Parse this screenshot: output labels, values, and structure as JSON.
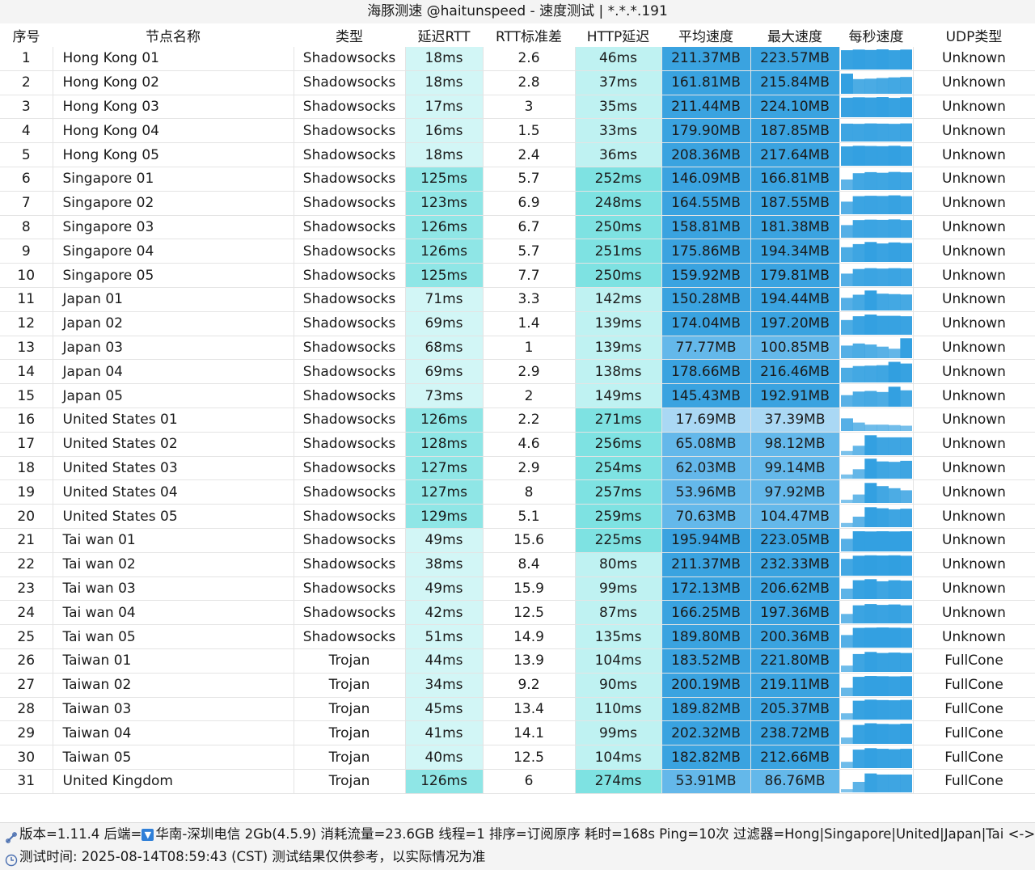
{
  "window": {
    "title": "海豚测速 @haitunspeed - 速度测试 | *.*.*.191"
  },
  "headers": [
    "序号",
    "节点名称",
    "类型",
    "延迟RTT",
    "RTT标准差",
    "HTTP延迟",
    "平均速度",
    "最大速度",
    "每秒速度",
    "UDP类型"
  ],
  "rows": [
    {
      "idx": "1",
      "name": "Hong Kong 01",
      "type": "Shadowsocks",
      "rtt": "18ms",
      "std": "2.6",
      "http": "46ms",
      "avg": "211.37MB",
      "max": "223.57MB",
      "udp": "Unknown",
      "spark": [
        0.92,
        0.95,
        0.93,
        0.96,
        0.92,
        0.95
      ]
    },
    {
      "idx": "2",
      "name": "Hong Kong 02",
      "type": "Shadowsocks",
      "rtt": "18ms",
      "std": "2.8",
      "http": "37ms",
      "avg": "161.81MB",
      "max": "215.84MB",
      "udp": "Unknown",
      "spark": [
        0.96,
        0.7,
        0.72,
        0.75,
        0.78,
        0.8
      ]
    },
    {
      "idx": "3",
      "name": "Hong Kong 03",
      "type": "Shadowsocks",
      "rtt": "17ms",
      "std": "3",
      "http": "35ms",
      "avg": "211.44MB",
      "max": "224.10MB",
      "udp": "Unknown",
      "spark": [
        0.93,
        0.95,
        0.94,
        0.96,
        0.92,
        0.95
      ]
    },
    {
      "idx": "4",
      "name": "Hong Kong 04",
      "type": "Shadowsocks",
      "rtt": "16ms",
      "std": "1.5",
      "http": "33ms",
      "avg": "179.90MB",
      "max": "187.85MB",
      "udp": "Unknown",
      "spark": [
        0.85,
        0.84,
        0.86,
        0.85,
        0.84,
        0.86
      ]
    },
    {
      "idx": "5",
      "name": "Hong Kong 05",
      "type": "Shadowsocks",
      "rtt": "18ms",
      "std": "2.4",
      "http": "36ms",
      "avg": "208.36MB",
      "max": "217.64MB",
      "udp": "Unknown",
      "spark": [
        0.92,
        0.95,
        0.94,
        0.93,
        0.95,
        0.92
      ]
    },
    {
      "idx": "6",
      "name": "Singapore 01",
      "type": "Shadowsocks",
      "rtt": "125ms",
      "std": "5.7",
      "http": "252ms",
      "avg": "146.09MB",
      "max": "166.81MB",
      "udp": "Unknown",
      "spark": [
        0.5,
        0.8,
        0.85,
        0.82,
        0.86,
        0.84
      ]
    },
    {
      "idx": "7",
      "name": "Singapore 02",
      "type": "Shadowsocks",
      "rtt": "123ms",
      "std": "6.9",
      "http": "248ms",
      "avg": "164.55MB",
      "max": "187.55MB",
      "udp": "Unknown",
      "spark": [
        0.6,
        0.86,
        0.88,
        0.87,
        0.9,
        0.86
      ]
    },
    {
      "idx": "8",
      "name": "Singapore 03",
      "type": "Shadowsocks",
      "rtt": "126ms",
      "std": "6.7",
      "http": "250ms",
      "avg": "158.81MB",
      "max": "181.38MB",
      "udp": "Unknown",
      "spark": [
        0.6,
        0.84,
        0.86,
        0.85,
        0.87,
        0.84
      ]
    },
    {
      "idx": "9",
      "name": "Singapore 04",
      "type": "Shadowsocks",
      "rtt": "126ms",
      "std": "5.7",
      "http": "251ms",
      "avg": "175.86MB",
      "max": "194.34MB",
      "udp": "Unknown",
      "spark": [
        0.7,
        0.85,
        0.95,
        0.88,
        0.93,
        0.9
      ]
    },
    {
      "idx": "10",
      "name": "Singapore 05",
      "type": "Shadowsocks",
      "rtt": "125ms",
      "std": "7.7",
      "http": "250ms",
      "avg": "159.92MB",
      "max": "179.81MB",
      "udp": "Unknown",
      "spark": [
        0.6,
        0.82,
        0.86,
        0.84,
        0.86,
        0.85
      ]
    },
    {
      "idx": "11",
      "name": "Japan 01",
      "type": "Shadowsocks",
      "rtt": "71ms",
      "std": "3.3",
      "http": "142ms",
      "avg": "150.28MB",
      "max": "194.44MB",
      "udp": "Unknown",
      "spark": [
        0.6,
        0.75,
        0.95,
        0.8,
        0.78,
        0.76
      ]
    },
    {
      "idx": "12",
      "name": "Japan 02",
      "type": "Shadowsocks",
      "rtt": "69ms",
      "std": "1.4",
      "http": "139ms",
      "avg": "174.04MB",
      "max": "197.20MB",
      "udp": "Unknown",
      "spark": [
        0.7,
        0.88,
        0.96,
        0.9,
        0.9,
        0.88
      ]
    },
    {
      "idx": "13",
      "name": "Japan 03",
      "type": "Shadowsocks",
      "rtt": "68ms",
      "std": "1",
      "http": "139ms",
      "avg": "77.77MB",
      "max": "100.85MB",
      "udp": "Unknown",
      "spark": [
        0.6,
        0.7,
        0.65,
        0.55,
        0.45,
        0.95
      ]
    },
    {
      "idx": "14",
      "name": "Japan 04",
      "type": "Shadowsocks",
      "rtt": "69ms",
      "std": "2.9",
      "http": "138ms",
      "avg": "178.66MB",
      "max": "216.46MB",
      "udp": "Unknown",
      "spark": [
        0.7,
        0.78,
        0.8,
        0.82,
        0.98,
        0.9
      ]
    },
    {
      "idx": "15",
      "name": "Japan 05",
      "type": "Shadowsocks",
      "rtt": "73ms",
      "std": "2",
      "http": "149ms",
      "avg": "145.43MB",
      "max": "192.91MB",
      "udp": "Unknown",
      "spark": [
        0.55,
        0.72,
        0.75,
        0.7,
        0.95,
        0.78
      ]
    },
    {
      "idx": "16",
      "name": "United States 01",
      "type": "Shadowsocks",
      "rtt": "126ms",
      "std": "2.2",
      "http": "271ms",
      "avg": "17.69MB",
      "max": "37.39MB",
      "udp": "Unknown",
      "spark": [
        0.6,
        0.4,
        0.3,
        0.3,
        0.28,
        0.25
      ]
    },
    {
      "idx": "17",
      "name": "United States 02",
      "type": "Shadowsocks",
      "rtt": "128ms",
      "std": "4.6",
      "http": "256ms",
      "avg": "65.08MB",
      "max": "98.12MB",
      "udp": "Unknown",
      "spark": [
        0.2,
        0.45,
        0.95,
        0.85,
        0.85,
        0.85
      ]
    },
    {
      "idx": "18",
      "name": "United States 03",
      "type": "Shadowsocks",
      "rtt": "127ms",
      "std": "2.9",
      "http": "254ms",
      "avg": "62.03MB",
      "max": "99.14MB",
      "udp": "Unknown",
      "spark": [
        0.2,
        0.45,
        0.95,
        0.82,
        0.8,
        0.85
      ]
    },
    {
      "idx": "19",
      "name": "United States 04",
      "type": "Shadowsocks",
      "rtt": "127ms",
      "std": "8",
      "http": "257ms",
      "avg": "53.96MB",
      "max": "97.92MB",
      "udp": "Unknown",
      "spark": [
        0.15,
        0.4,
        0.95,
        0.8,
        0.7,
        0.6
      ]
    },
    {
      "idx": "20",
      "name": "United States 05",
      "type": "Shadowsocks",
      "rtt": "129ms",
      "std": "5.1",
      "http": "259ms",
      "avg": "70.63MB",
      "max": "104.47MB",
      "udp": "Unknown",
      "spark": [
        0.2,
        0.5,
        0.95,
        0.9,
        0.85,
        0.88
      ]
    },
    {
      "idx": "21",
      "name": "Tai wan 01",
      "type": "Shadowsocks",
      "rtt": "49ms",
      "std": "15.6",
      "http": "225ms",
      "avg": "195.94MB",
      "max": "223.05MB",
      "udp": "Unknown",
      "spark": [
        0.6,
        0.96,
        0.95,
        0.96,
        0.95,
        0.96
      ]
    },
    {
      "idx": "22",
      "name": "Tai wan 02",
      "type": "Shadowsocks",
      "rtt": "38ms",
      "std": "8.4",
      "http": "80ms",
      "avg": "211.37MB",
      "max": "232.33MB",
      "udp": "Unknown",
      "spark": [
        0.8,
        0.95,
        0.97,
        0.96,
        0.97,
        0.95
      ]
    },
    {
      "idx": "23",
      "name": "Tai wan 03",
      "type": "Shadowsocks",
      "rtt": "49ms",
      "std": "15.9",
      "http": "99ms",
      "avg": "172.13MB",
      "max": "206.62MB",
      "udp": "Unknown",
      "spark": [
        0.5,
        0.9,
        0.95,
        0.85,
        0.9,
        0.88
      ]
    },
    {
      "idx": "24",
      "name": "Tai wan 04",
      "type": "Shadowsocks",
      "rtt": "42ms",
      "std": "12.5",
      "http": "87ms",
      "avg": "166.25MB",
      "max": "197.36MB",
      "udp": "Unknown",
      "spark": [
        0.45,
        0.86,
        0.92,
        0.88,
        0.9,
        0.86
      ]
    },
    {
      "idx": "25",
      "name": "Tai wan 05",
      "type": "Shadowsocks",
      "rtt": "51ms",
      "std": "14.9",
      "http": "135ms",
      "avg": "189.80MB",
      "max": "200.36MB",
      "udp": "Unknown",
      "spark": [
        0.6,
        0.94,
        0.95,
        0.96,
        0.95,
        0.94
      ]
    },
    {
      "idx": "26",
      "name": "Taiwan 01",
      "type": "Trojan",
      "rtt": "44ms",
      "std": "13.9",
      "http": "104ms",
      "avg": "183.52MB",
      "max": "221.80MB",
      "udp": "FullCone",
      "spark": [
        0.3,
        0.85,
        0.95,
        0.9,
        0.92,
        0.9
      ]
    },
    {
      "idx": "27",
      "name": "Taiwan 02",
      "type": "Trojan",
      "rtt": "34ms",
      "std": "9.2",
      "http": "90ms",
      "avg": "200.19MB",
      "max": "219.11MB",
      "udp": "FullCone",
      "spark": [
        0.4,
        0.92,
        0.96,
        0.95,
        0.94,
        0.95
      ]
    },
    {
      "idx": "28",
      "name": "Taiwan 03",
      "type": "Trojan",
      "rtt": "45ms",
      "std": "13.4",
      "http": "110ms",
      "avg": "189.82MB",
      "max": "205.37MB",
      "udp": "FullCone",
      "spark": [
        0.3,
        0.9,
        0.95,
        0.93,
        0.92,
        0.94
      ]
    },
    {
      "idx": "29",
      "name": "Taiwan 04",
      "type": "Trojan",
      "rtt": "41ms",
      "std": "14.1",
      "http": "99ms",
      "avg": "202.32MB",
      "max": "238.72MB",
      "udp": "FullCone",
      "spark": [
        0.3,
        0.9,
        0.98,
        0.95,
        0.94,
        0.96
      ]
    },
    {
      "idx": "30",
      "name": "Taiwan 05",
      "type": "Trojan",
      "rtt": "40ms",
      "std": "12.5",
      "http": "104ms",
      "avg": "182.82MB",
      "max": "212.66MB",
      "udp": "FullCone",
      "spark": [
        0.3,
        0.88,
        0.95,
        0.92,
        0.9,
        0.92
      ]
    },
    {
      "idx": "31",
      "name": "United Kingdom",
      "type": "Trojan",
      "rtt": "126ms",
      "std": "6",
      "http": "274ms",
      "avg": "53.91MB",
      "max": "86.76MB",
      "udp": "FullCone",
      "spark": [
        0.15,
        0.5,
        0.9,
        0.85,
        0.85,
        0.85
      ]
    }
  ],
  "footer": {
    "line1_prefix": "版本=1.11.4 后端=",
    "line1_rest": "华南-深圳电信 2Gb(4.5.9) 消耗流量=23.6GB 线程=1 排序=订阅原序 耗时=168s Ping=10次 过滤器=Hong|Singapore|United|Japan|Tai <->",
    "line2": "测试时间: 2025-08-14T08:59:43 (CST) 测试结果仅供参考，以实际情况为准"
  },
  "icons": {
    "version": "link-icon",
    "backend_flag": "down-arrow-flag-icon",
    "time": "clock-icon"
  },
  "colors": {
    "rtt_low": "#d2f6f6",
    "rtt_high": "#8fe6e6",
    "http_low": "#bff2f2",
    "http_high": "#7ee2e2",
    "speed_high": "#3aa3e0",
    "speed_mid": "#64b8ea",
    "speed_low": "#aad8f4",
    "spark": "#2f9ee0"
  }
}
